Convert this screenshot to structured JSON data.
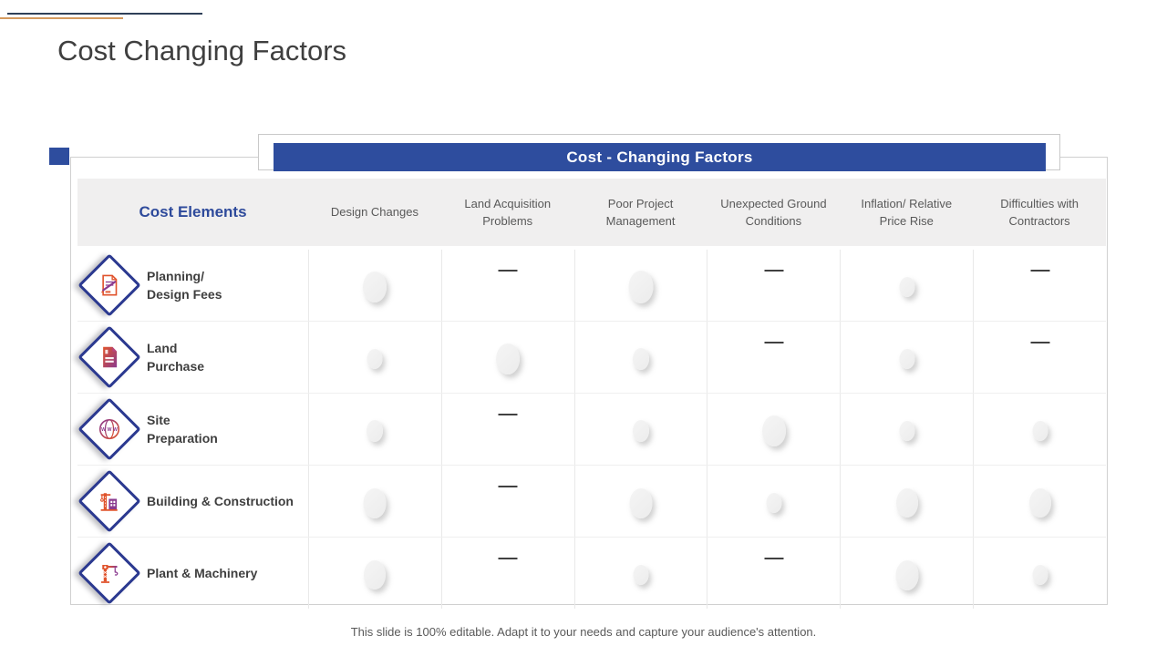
{
  "slide": {
    "title": "Cost Changing Factors",
    "footer": "This slide is 100% editable. Adapt it to your needs and capture your audience's attention."
  },
  "table": {
    "banner_title": "Cost - Changing Factors",
    "cost_elements_header": "Cost Elements",
    "factor_headers": [
      "Design Changes",
      "Land Acquisition\nProblems",
      "Poor Project\nManagement",
      "Unexpected Ground\nConditions",
      "Inflation/ Relative\nPrice Rise",
      "Difficulties with\nContractors"
    ],
    "rows": [
      {
        "icon": "planning-document-pencil-icon",
        "label": "Planning/\nDesign Fees",
        "cells": [
          {
            "type": "circle",
            "size": 26
          },
          {
            "type": "dash"
          },
          {
            "type": "circle",
            "size": 27
          },
          {
            "type": "dash"
          },
          {
            "type": "circle",
            "size": 17
          },
          {
            "type": "dash"
          }
        ]
      },
      {
        "icon": "land-purchase-document-icon",
        "label": "Land\nPurchase",
        "cells": [
          {
            "type": "circle",
            "size": 17
          },
          {
            "type": "circle",
            "size": 26
          },
          {
            "type": "circle",
            "size": 18
          },
          {
            "type": "dash"
          },
          {
            "type": "circle",
            "size": 17
          },
          {
            "type": "dash"
          }
        ]
      },
      {
        "icon": "globe-www-icon",
        "label": "Site\nPreparation",
        "cells": [
          {
            "type": "circle",
            "size": 18
          },
          {
            "type": "dash"
          },
          {
            "type": "circle",
            "size": 18
          },
          {
            "type": "circle",
            "size": 26
          },
          {
            "type": "circle",
            "size": 17
          },
          {
            "type": "circle",
            "size": 17
          }
        ]
      },
      {
        "icon": "crane-building-icon",
        "label": "Building & Construction",
        "cells": [
          {
            "type": "circle",
            "size": 25
          },
          {
            "type": "dash"
          },
          {
            "type": "circle",
            "size": 25
          },
          {
            "type": "circle",
            "size": 17
          },
          {
            "type": "circle",
            "size": 24
          },
          {
            "type": "circle",
            "size": 24
          }
        ]
      },
      {
        "icon": "tower-crane-icon",
        "label": "Plant & Machinery",
        "cells": [
          {
            "type": "circle",
            "size": 24
          },
          {
            "type": "dash"
          },
          {
            "type": "circle",
            "size": 17
          },
          {
            "type": "dash"
          },
          {
            "type": "circle",
            "size": 25
          },
          {
            "type": "circle",
            "size": 17
          }
        ]
      }
    ]
  },
  "colors": {
    "banner_blue": "#2e4d9e",
    "navy": "#2b3990",
    "line_navy": "#2f4058",
    "line_orange": "#d49a5e",
    "icon_orange": "#e0532c",
    "icon_purple": "#8a3a8f",
    "circle_gray": "#f1f1f1",
    "dash_gray": "#414141"
  }
}
